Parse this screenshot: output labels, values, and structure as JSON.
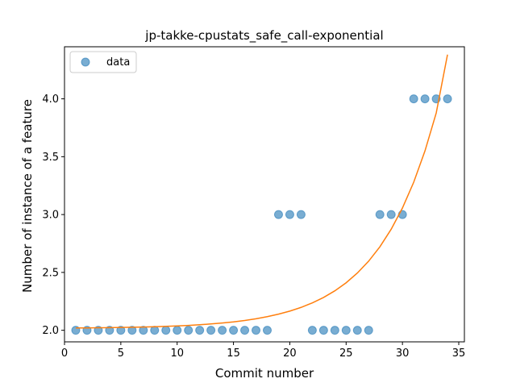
{
  "chart_data": {
    "type": "scatter",
    "title": "jp-takke-cpustats_safe_call-exponential",
    "xlabel": "Commit number",
    "ylabel": "Number of instance of a feature",
    "xlim": [
      0,
      35.5
    ],
    "ylim": [
      1.9,
      4.45
    ],
    "xticks": [
      0,
      5,
      10,
      15,
      20,
      25,
      30,
      35
    ],
    "yticks": [
      2.0,
      2.5,
      3.0,
      3.5,
      4.0
    ],
    "xtick_labels": [
      "0",
      "5",
      "10",
      "15",
      "20",
      "25",
      "30",
      "35"
    ],
    "ytick_labels": [
      "2.0",
      "2.5",
      "3.0",
      "3.5",
      "4.0"
    ],
    "legend": {
      "position": "top-left",
      "entries": [
        "data"
      ]
    },
    "series": [
      {
        "name": "data",
        "kind": "scatter",
        "color": "#1f77b4",
        "x": [
          1,
          2,
          3,
          4,
          5,
          6,
          7,
          8,
          9,
          10,
          11,
          12,
          13,
          14,
          15,
          16,
          17,
          18,
          19,
          20,
          21,
          22,
          23,
          24,
          25,
          26,
          27,
          28,
          29,
          30,
          31,
          32,
          33,
          34
        ],
        "y": [
          2,
          2,
          2,
          2,
          2,
          2,
          2,
          2,
          2,
          2,
          2,
          2,
          2,
          2,
          2,
          2,
          2,
          2,
          3,
          3,
          3,
          2,
          2,
          2,
          2,
          2,
          2,
          3,
          3,
          3,
          4,
          4,
          4,
          4
        ]
      },
      {
        "kind": "line",
        "color": "#ff7f0e",
        "x": [
          1,
          2,
          3,
          4,
          5,
          6,
          7,
          8,
          9,
          10,
          11,
          12,
          13,
          14,
          15,
          16,
          17,
          18,
          19,
          20,
          21,
          22,
          23,
          24,
          25,
          26,
          27,
          28,
          29,
          30,
          31,
          32,
          33,
          34
        ],
        "y": [
          2.0198,
          2.0206,
          2.0216,
          2.0228,
          2.0242,
          2.026,
          2.0281,
          2.0307,
          2.0338,
          2.0376,
          2.0422,
          2.0478,
          2.0546,
          2.0628,
          2.0728,
          2.085,
          2.0997,
          2.1176,
          2.1394,
          2.1658,
          2.1977,
          2.2366,
          2.2837,
          2.341,
          2.4105,
          2.4949,
          2.5974,
          2.7219,
          2.8731,
          3.0566,
          3.2794,
          3.5499,
          3.8783,
          4.3818
        ]
      }
    ]
  }
}
